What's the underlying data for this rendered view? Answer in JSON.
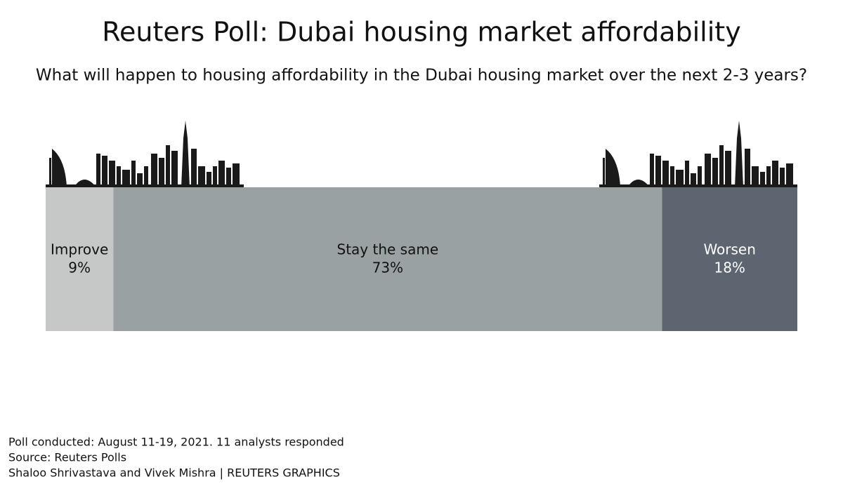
{
  "chart_data": {
    "type": "bar",
    "title": "Reuters Poll: Dubai housing market affordability",
    "subtitle": "What will happen to housing affordability in the Dubai housing market over the next 2-3 years?",
    "xlim": [
      0,
      100
    ],
    "series": [
      {
        "name": "Improve",
        "color": "#c6c7c7",
        "values": [
          9
        ],
        "value_labels": [
          "9%"
        ]
      },
      {
        "name": "Stay the same",
        "color": "#9aa1a2",
        "values": [
          73
        ],
        "value_labels": [
          "73%"
        ]
      },
      {
        "name": "Worsen",
        "color": "#5c6570",
        "values": [
          18
        ],
        "value_labels": [
          "18%"
        ]
      }
    ],
    "footnotes": [
      "Poll conducted: August 11-19, 2021. 11 analysts responded",
      "Source: Reuters Polls",
      "Shaloo Shrivastava and Vivek Mishra | REUTERS GRAPHICS"
    ]
  }
}
